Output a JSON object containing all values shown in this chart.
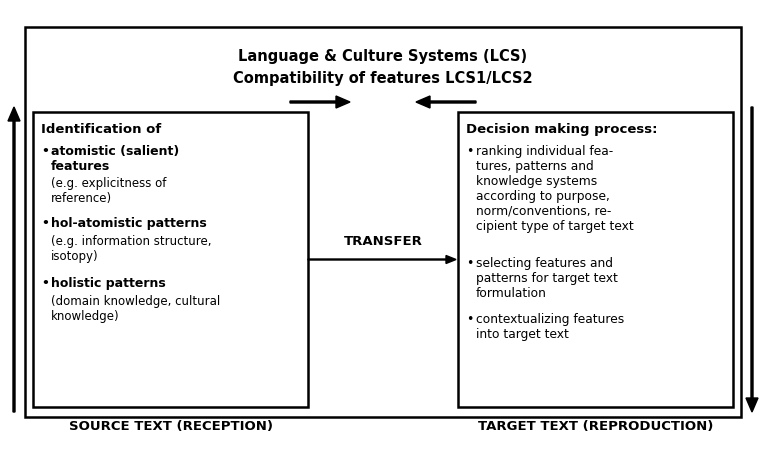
{
  "bg_color": "#ffffff",
  "title_line1": "Language & Culture Systems (LCS)",
  "title_line2": "Compatibility of features LCS1/LCS2",
  "transfer_label": "TRANSFER",
  "source_label": "SOURCE TEXT (RECEPTION)",
  "target_label": "TARGET TEXT (REPRODUCTION)",
  "fig_w": 7.66,
  "fig_h": 4.6,
  "dpi": 100
}
